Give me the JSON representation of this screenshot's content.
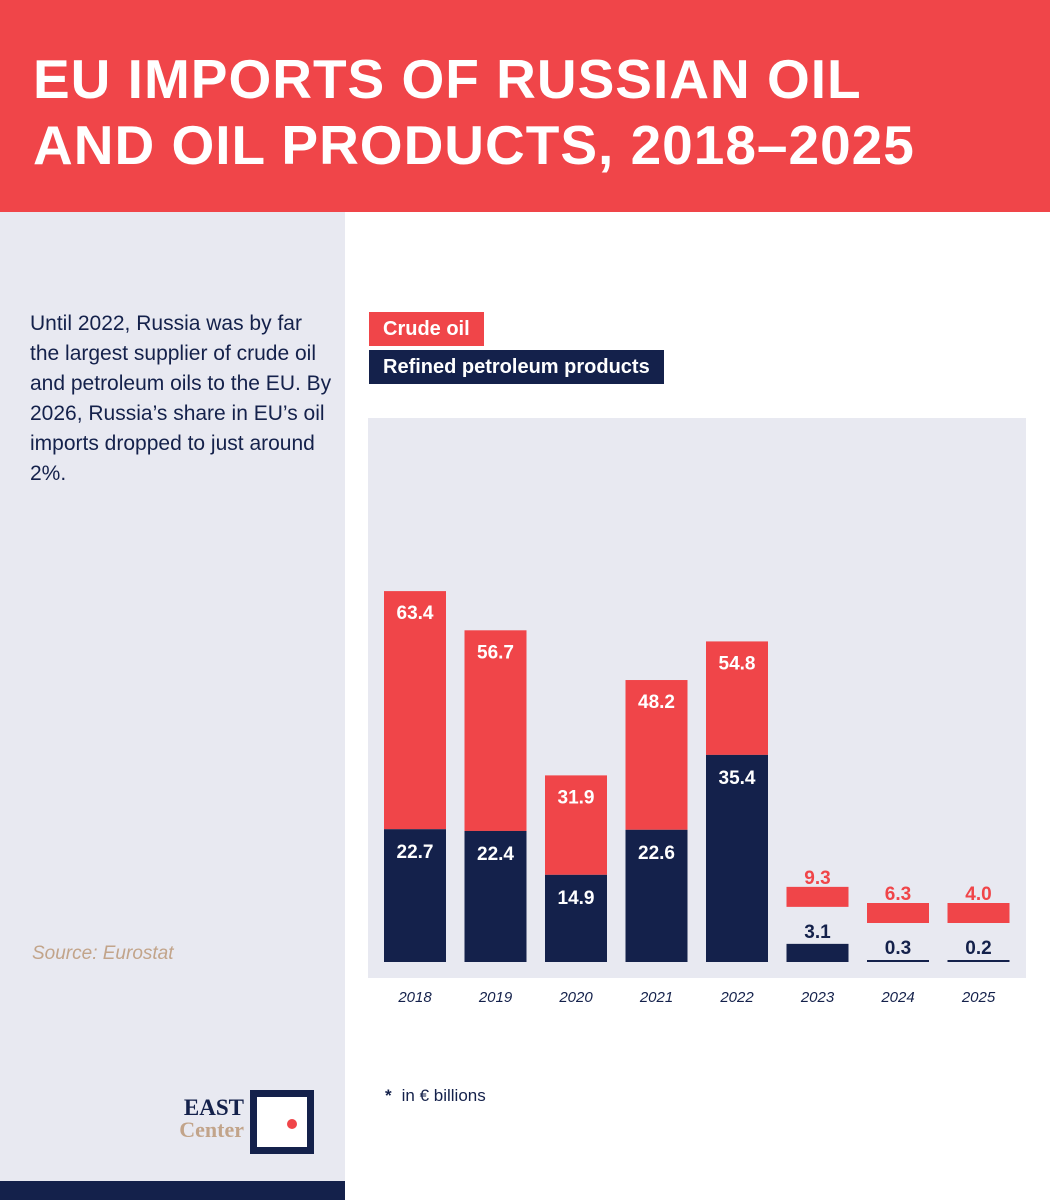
{
  "title": "EU IMPORTS OF RUSSIAN OIL\nAND OIL PRODUCTS, 2018–2025",
  "intro": "Until 2022, Russia was by far the largest supplier of crude oil and petroleum oils to the EU. By 2026, Russia’s share in EU’s oil imports dropped to just around 2%.",
  "source": "Source: Eurostat",
  "footnote": {
    "star": "*",
    "text": "in € billions"
  },
  "logo": {
    "line1": "EAST",
    "line2": "Center"
  },
  "colors": {
    "crude": "#f04549",
    "refined": "#14214b",
    "panel": "#e8e9f1"
  },
  "chart_data": {
    "type": "bar",
    "stacked": true,
    "categories": [
      "2018",
      "2019",
      "2020",
      "2021",
      "2022",
      "2023",
      "2024",
      "2025"
    ],
    "series": [
      {
        "name": "Refined petroleum products",
        "values": [
          22.7,
          22.4,
          14.9,
          22.6,
          35.4,
          3.1,
          0.3,
          0.2
        ]
      },
      {
        "name": "Crude oil",
        "values": [
          63.4,
          56.7,
          31.9,
          48.2,
          54.8,
          9.3,
          6.3,
          4.0
        ]
      }
    ],
    "legend": [
      "Crude oil",
      "Refined petroleum products"
    ],
    "unit": "in € billions",
    "ylim": [
      0,
      100
    ],
    "grid": false
  }
}
